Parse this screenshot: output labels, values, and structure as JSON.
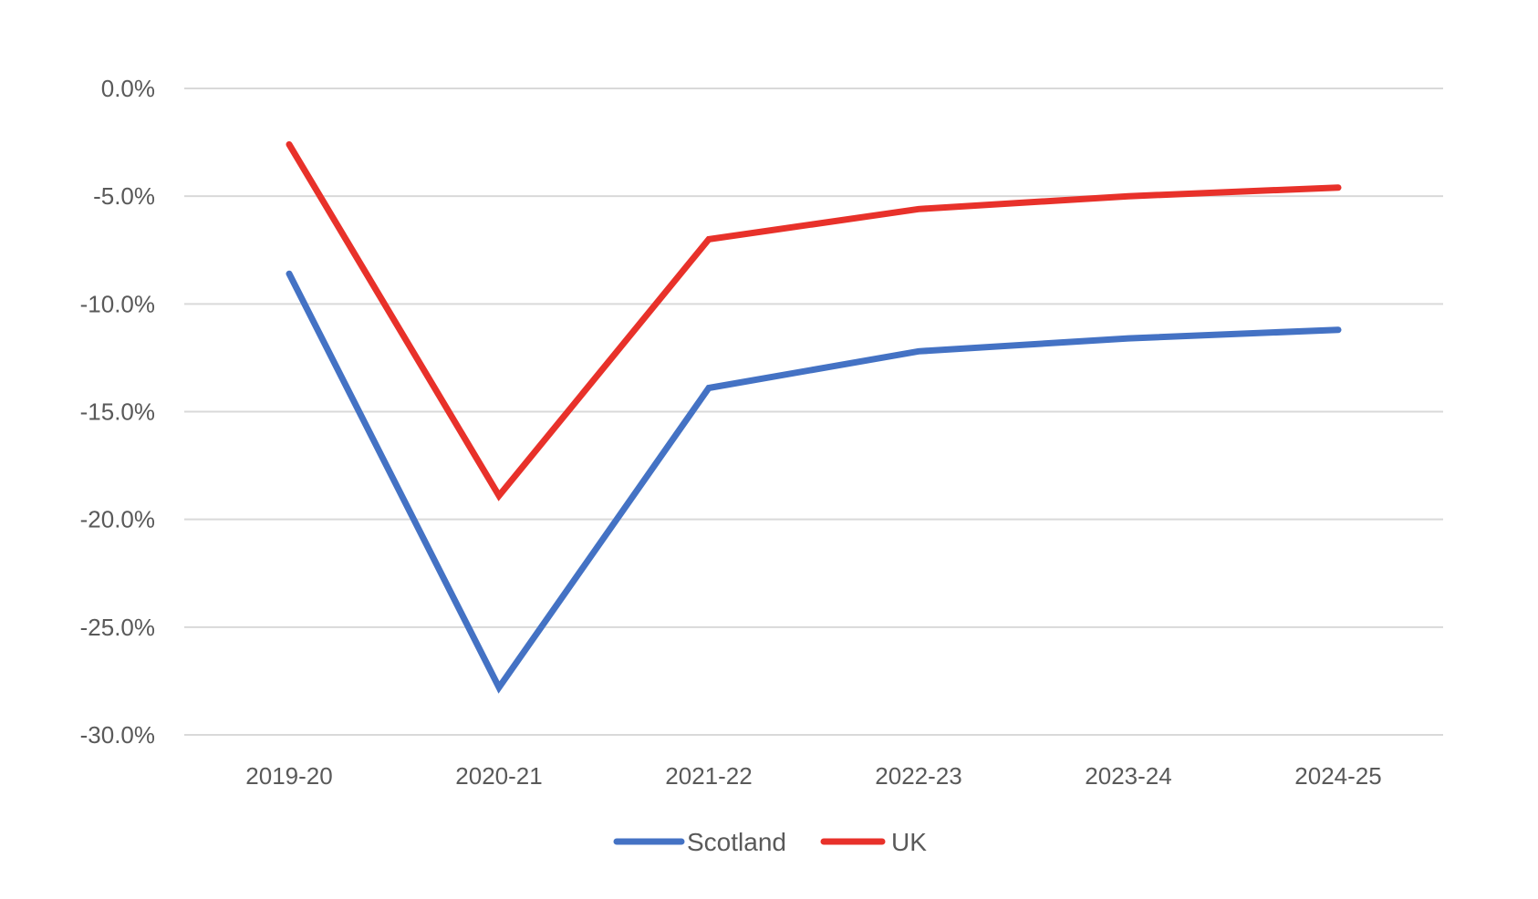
{
  "chart_data": {
    "type": "line",
    "title": "",
    "xlabel": "",
    "ylabel": "",
    "categories": [
      "2019-20",
      "2020-21",
      "2021-22",
      "2022-23",
      "2023-24",
      "2024-25"
    ],
    "ylim": [
      -30.0,
      0.0
    ],
    "yticks": [
      0.0,
      -5.0,
      -10.0,
      -15.0,
      -20.0,
      -25.0,
      -30.0
    ],
    "ytick_labels": [
      "0.0%",
      "-5.0%",
      "-10.0%",
      "-15.0%",
      "-20.0%",
      "-25.0%",
      "-30.0%"
    ],
    "grid": "horizontal",
    "legend_position": "bottom",
    "series": [
      {
        "name": "Scotland",
        "color": "#4472C4",
        "values": [
          -8.6,
          -27.8,
          -13.9,
          -12.2,
          -11.6,
          -11.2
        ]
      },
      {
        "name": "UK",
        "color": "#E8312A",
        "values": [
          -2.6,
          -18.9,
          -7.0,
          -5.6,
          -5.0,
          -4.6
        ]
      }
    ]
  }
}
